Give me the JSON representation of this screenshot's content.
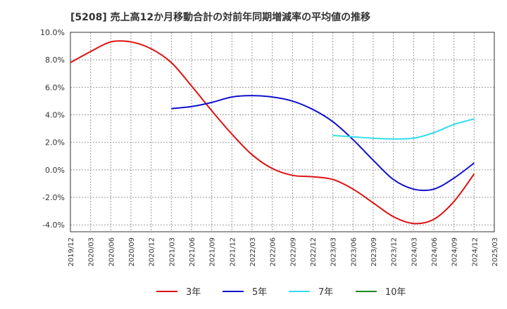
{
  "chart_data": {
    "type": "line",
    "title": "[5208]  売上高12か月移動合計の対前年同期増減率の平均値の推移",
    "xlabel": "",
    "ylabel": "",
    "ylim": [
      -4.5,
      10.0
    ],
    "yticks": [
      10.0,
      8.0,
      6.0,
      4.0,
      2.0,
      0.0,
      -2.0,
      -4.0
    ],
    "ytick_labels": [
      "10.0%",
      "8.0%",
      "6.0%",
      "4.0%",
      "2.0%",
      "0.0%",
      "-2.0%",
      "-4.0%"
    ],
    "x_ticks": [
      "2019/12",
      "2020/03",
      "2020/06",
      "2020/09",
      "2020/12",
      "2021/03",
      "2021/06",
      "2021/09",
      "2021/12",
      "2022/03",
      "2022/06",
      "2022/09",
      "2022/12",
      "2023/03",
      "2023/06",
      "2023/09",
      "2023/12",
      "2024/03",
      "2024/06",
      "2024/09",
      "2024/12",
      "2025/03"
    ],
    "grid": true,
    "legend_position": "bottom",
    "series": [
      {
        "name": "3年",
        "color": "#dd1111",
        "x": [
          "2019/12",
          "2020/03",
          "2020/06",
          "2020/09",
          "2020/12",
          "2021/03",
          "2021/06",
          "2021/09",
          "2021/12",
          "2022/03",
          "2022/06",
          "2022/09",
          "2022/12",
          "2023/03",
          "2023/06",
          "2023/09",
          "2023/12",
          "2024/03",
          "2024/06",
          "2024/09",
          "2024/12"
        ],
        "values": [
          7.8,
          8.6,
          9.3,
          9.3,
          8.8,
          7.8,
          6.1,
          4.3,
          2.6,
          1.1,
          0.1,
          -0.4,
          -0.5,
          -0.7,
          -1.4,
          -2.4,
          -3.4,
          -3.9,
          -3.6,
          -2.3,
          -0.3
        ]
      },
      {
        "name": "5年",
        "color": "#1111cc",
        "x": [
          "2021/03",
          "2021/06",
          "2021/09",
          "2021/12",
          "2022/03",
          "2022/06",
          "2022/09",
          "2022/12",
          "2023/03",
          "2023/06",
          "2023/09",
          "2023/12",
          "2024/03",
          "2024/06",
          "2024/09",
          "2024/12"
        ],
        "values": [
          4.45,
          4.6,
          4.9,
          5.3,
          5.4,
          5.3,
          5.0,
          4.4,
          3.5,
          2.2,
          0.7,
          -0.7,
          -1.4,
          -1.4,
          -0.6,
          0.5
        ]
      },
      {
        "name": "7年",
        "color": "#33ddee",
        "x": [
          "2023/03",
          "2023/06",
          "2023/09",
          "2023/12",
          "2024/03",
          "2024/06",
          "2024/09",
          "2024/12"
        ],
        "values": [
          2.5,
          2.4,
          2.3,
          2.25,
          2.3,
          2.7,
          3.3,
          3.7
        ]
      },
      {
        "name": "10年",
        "color": "#228822",
        "x": [],
        "values": []
      }
    ]
  }
}
